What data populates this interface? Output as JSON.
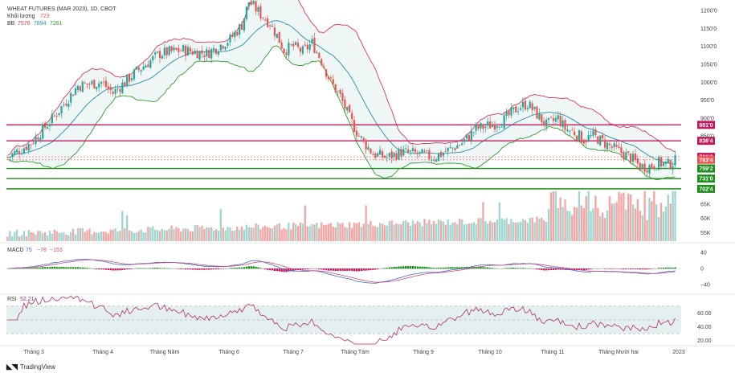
{
  "legend": {
    "title": "WHEAT FUTURES (MAR 2023), 1D, CBOT",
    "volume_label": "Khối lượng",
    "volume_value": "723",
    "bb_label": "BB",
    "bb_values": [
      "7576",
      "7894",
      "7261"
    ]
  },
  "macd_legend": {
    "label": "MACD",
    "values": [
      "75",
      "−78",
      "−153"
    ]
  },
  "rsi_legend": {
    "label": "RSI",
    "value": "52.21"
  },
  "footer": {
    "brand": "TradingView"
  },
  "colors": {
    "up": "#26a69a",
    "down": "#ef5350",
    "bb_upper": "#e0345a",
    "bb_basis": "#2a8aa8",
    "bb_lower": "#2e9e2e",
    "bb_fill": "#eef6f6",
    "resistance": "#c2185b",
    "support": "#1e8e1e",
    "rsi_line": "#b03060",
    "rsi_band": "#e4f0f0",
    "macd_line": "#3b6cc7",
    "signal_line": "#d14e7a"
  },
  "chart_data": [
    {
      "type": "candlestick",
      "title": "WHEAT FUTURES (MAR 2023), 1D, CBOT",
      "x_tick_labels": [
        "Tháng 3",
        "Tháng 4",
        "Tháng Năm",
        "Tháng 6",
        "Tháng 7",
        "Tháng Tám",
        "Tháng 9",
        "Tháng 10",
        "Tháng 11",
        "Tháng Mười hai",
        "2023"
      ],
      "y_tick_labels": [
        "1200'0",
        "1150'0",
        "1100'0",
        "1050'0",
        "1000'0",
        "950'0",
        "900'0",
        "850'0"
      ],
      "ylim": [
        700,
        1225
      ],
      "price_path": [
        [
          0,
          790
        ],
        [
          10,
          830
        ],
        [
          20,
          905
        ],
        [
          30,
          990
        ],
        [
          40,
          1000
        ],
        [
          45,
          970
        ],
        [
          55,
          1030
        ],
        [
          65,
          1080
        ],
        [
          75,
          1090
        ],
        [
          85,
          1080
        ],
        [
          95,
          1120
        ],
        [
          100,
          1160
        ],
        [
          103,
          1225
        ],
        [
          108,
          1190
        ],
        [
          112,
          1165
        ],
        [
          115,
          1130
        ],
        [
          118,
          1090
        ],
        [
          122,
          1100
        ],
        [
          126,
          1085
        ],
        [
          130,
          1110
        ],
        [
          134,
          1060
        ],
        [
          138,
          1000
        ],
        [
          142,
          960
        ],
        [
          146,
          900
        ],
        [
          150,
          850
        ],
        [
          156,
          800
        ],
        [
          162,
          790
        ],
        [
          168,
          805
        ],
        [
          175,
          800
        ],
        [
          182,
          790
        ],
        [
          188,
          810
        ],
        [
          194,
          830
        ],
        [
          200,
          870
        ],
        [
          206,
          880
        ],
        [
          212,
          895
        ],
        [
          218,
          930
        ],
        [
          222,
          940
        ],
        [
          226,
          910
        ],
        [
          230,
          880
        ],
        [
          235,
          900
        ],
        [
          238,
          870
        ],
        [
          242,
          860
        ],
        [
          246,
          840
        ],
        [
          250,
          850
        ],
        [
          255,
          830
        ],
        [
          260,
          810
        ],
        [
          266,
          790
        ],
        [
          270,
          765
        ],
        [
          274,
          765
        ],
        [
          278,
          775
        ],
        [
          282,
          770
        ],
        [
          286,
          783
        ]
      ],
      "bars_total": 286,
      "horizontal_levels": [
        {
          "label": "881'0",
          "value": 881.0,
          "kind": "resistance"
        },
        {
          "label": "836'4",
          "value": 836.5,
          "kind": "resistance"
        },
        {
          "label": "759'2",
          "value": 759.25,
          "kind": "support"
        },
        {
          "label": "731'0",
          "value": 731.0,
          "kind": "support"
        },
        {
          "label": "702'4",
          "value": 702.5,
          "kind": "support"
        }
      ],
      "price_tags": [
        {
          "label": "791'6",
          "value": 791.75
        },
        {
          "label": "783'4",
          "value": 783.5
        }
      ],
      "bollinger": {
        "upper": "7576",
        "basis": "7894",
        "lower": "7261"
      }
    },
    {
      "type": "bar",
      "title": "Khối lượng",
      "y_tick_labels": [
        "65K",
        "60K",
        "55K"
      ],
      "ylim": [
        52,
        70
      ],
      "last_value": "723"
    },
    {
      "type": "line",
      "title": "MACD",
      "y_tick_labels": [
        "40",
        "0",
        "−40"
      ],
      "ylim": [
        -60,
        60
      ],
      "values": [
        "75",
        "−78",
        "−153"
      ]
    },
    {
      "type": "line",
      "title": "RSI",
      "y_tick_labels": [
        "60.00",
        "40.00",
        "20.00"
      ],
      "ylim": [
        15,
        85
      ],
      "band": [
        30,
        70
      ],
      "last_value": "52.21"
    }
  ]
}
